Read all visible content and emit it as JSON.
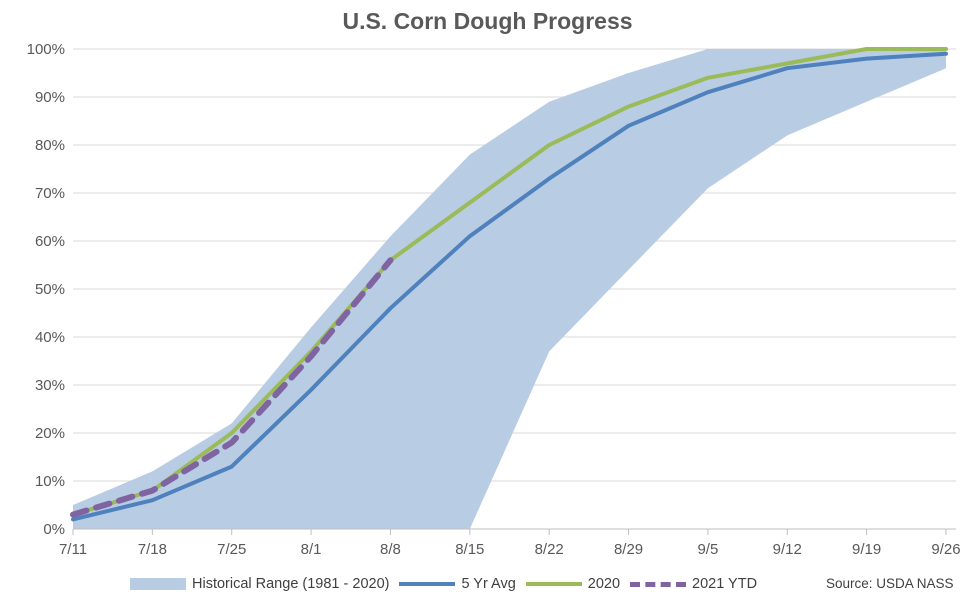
{
  "chart_data": {
    "type": "line",
    "title": "U.S. Corn Dough Progress",
    "xlabel": "",
    "ylabel": "",
    "categories": [
      "7/11",
      "7/18",
      "7/25",
      "8/1",
      "8/8",
      "8/15",
      "8/22",
      "8/29",
      "9/5",
      "9/12",
      "9/19",
      "9/26"
    ],
    "y_ticks": [
      "0%",
      "10%",
      "20%",
      "30%",
      "40%",
      "50%",
      "60%",
      "70%",
      "80%",
      "90%",
      "100%"
    ],
    "ylim": [
      0,
      100
    ],
    "grid": true,
    "legend_position": "bottom",
    "historical_range": {
      "name": "Historical Range (1981 - 2020)",
      "color": "#b8cce4",
      "high": [
        5,
        12,
        22,
        42,
        61,
        78,
        89,
        95,
        100,
        100,
        100,
        100
      ],
      "low": [
        0,
        0,
        0,
        0,
        0,
        0,
        37,
        54,
        71,
        82,
        89,
        96
      ]
    },
    "series": [
      {
        "name": "5 Yr Avg",
        "color": "#4f81bd",
        "dash": false,
        "values": [
          2,
          6,
          13,
          29,
          46,
          61,
          73,
          84,
          91,
          96,
          98,
          99
        ]
      },
      {
        "name": "2020",
        "color": "#9bbb59",
        "dash": false,
        "values": [
          3,
          8,
          20,
          37,
          56,
          68,
          80,
          88,
          94,
          97,
          100,
          100
        ]
      },
      {
        "name": "2021 YTD",
        "color": "#8064a2",
        "dash": true,
        "values": [
          3,
          8,
          18,
          36,
          56,
          null,
          null,
          null,
          null,
          null,
          null,
          null
        ]
      }
    ],
    "source": "Source: USDA NASS"
  }
}
